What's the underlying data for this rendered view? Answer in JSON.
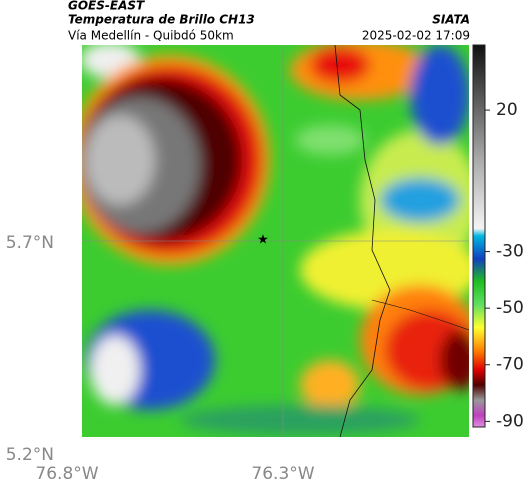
{
  "header": {
    "title": "GOES-EAST",
    "subtitle": "Temperatura de Brillo CH13",
    "route": "Vía Medellín - Quibdó 50km",
    "agency": "SIATA",
    "datetime": "2025-02-02 17:09"
  },
  "map": {
    "lat_labels": [
      "5.7°N",
      "5.2°N"
    ],
    "lon_labels": [
      "76.8°W",
      "76.3°W"
    ]
  },
  "colorbar": {
    "clim": [
      -92,
      43
    ],
    "ticks": [
      20,
      -30,
      -50,
      -70,
      -90
    ]
  }
}
